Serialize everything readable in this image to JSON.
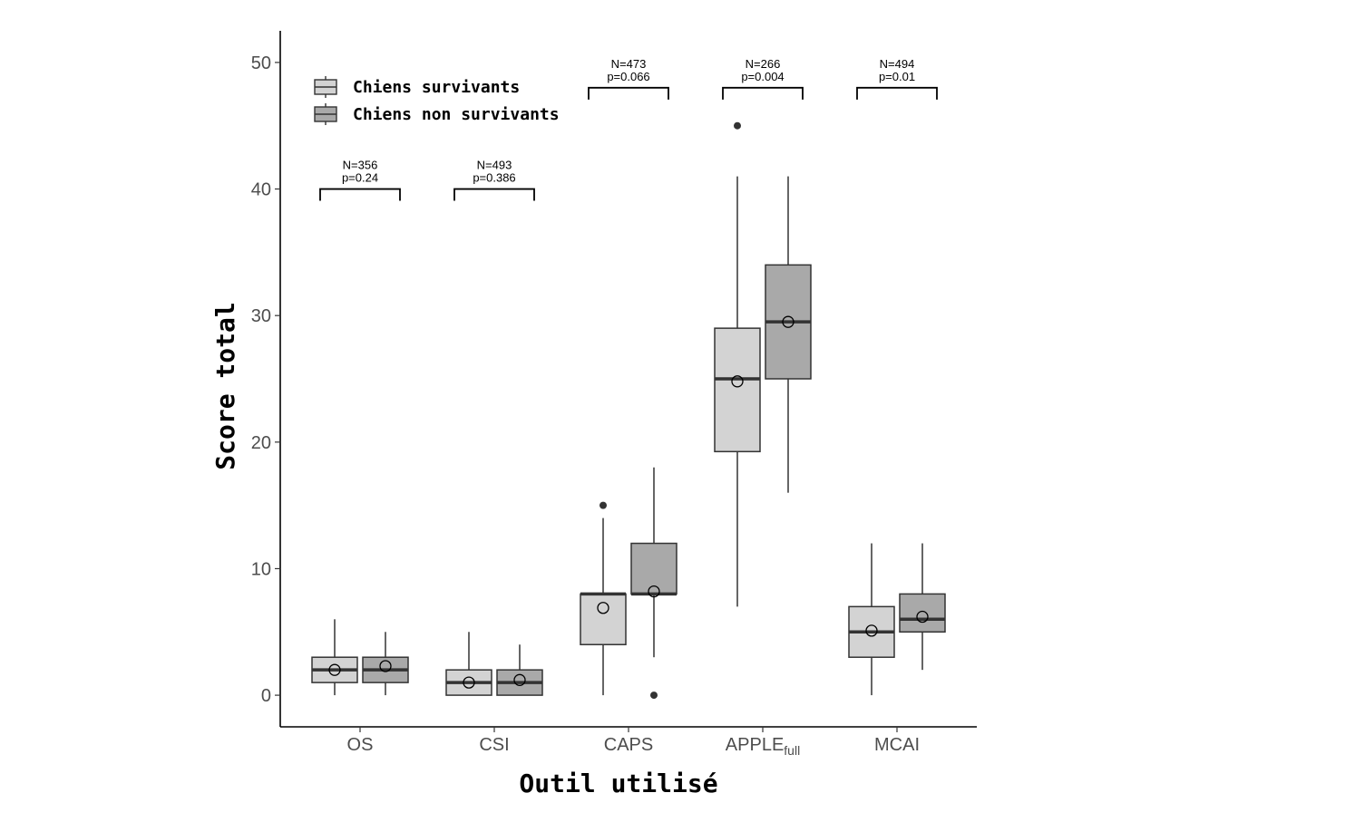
{
  "chart_data": {
    "type": "box",
    "xlabel": "Outil utilisé",
    "ylabel": "Score total",
    "ylim": [
      -2.5,
      52.5
    ],
    "yticks": [
      0,
      10,
      20,
      30,
      40,
      50
    ],
    "ytick_labels": [
      "0",
      "10",
      "20",
      "30",
      "40",
      "50"
    ],
    "categories": [
      {
        "label": "OS",
        "sub": ""
      },
      {
        "label": "CSI",
        "sub": ""
      },
      {
        "label": "CAPS",
        "sub": ""
      },
      {
        "label": "APPLE",
        "sub": "full"
      },
      {
        "label": "MCAI",
        "sub": ""
      }
    ],
    "legend": {
      "position": "top-left",
      "entries": [
        "Chiens survivants",
        "Chiens non survivants"
      ]
    },
    "colors": {
      "survivants": "#d3d3d3",
      "non_survivants": "#a9a9a9",
      "stroke": "#333333"
    },
    "series": [
      {
        "name": "Chiens survivants",
        "boxes": [
          {
            "min": 0,
            "q1": 1,
            "median": 2,
            "q3": 3,
            "max": 6,
            "mean": 2.0,
            "outliers": []
          },
          {
            "min": 0,
            "q1": 0,
            "median": 1,
            "q3": 2,
            "max": 5,
            "mean": 1.0,
            "outliers": []
          },
          {
            "min": 0,
            "q1": 4,
            "median": 8,
            "q3": 8,
            "max": 14,
            "mean": 6.9,
            "outliers": [
              15
            ]
          },
          {
            "min": 7,
            "q1": 19.25,
            "median": 25,
            "q3": 29,
            "max": 41,
            "mean": 24.8,
            "outliers": [
              45
            ]
          },
          {
            "min": 0,
            "q1": 3,
            "median": 5,
            "q3": 7,
            "max": 12,
            "mean": 5.1,
            "outliers": []
          }
        ]
      },
      {
        "name": "Chiens non survivants",
        "boxes": [
          {
            "min": 0,
            "q1": 1,
            "median": 2,
            "q3": 3,
            "max": 5,
            "mean": 2.3,
            "outliers": []
          },
          {
            "min": 0,
            "q1": 0,
            "median": 1,
            "q3": 2,
            "max": 4,
            "mean": 1.2,
            "outliers": []
          },
          {
            "min": 3,
            "q1": 8,
            "median": 8,
            "q3": 12,
            "max": 18,
            "mean": 8.2,
            "outliers": [
              0
            ]
          },
          {
            "min": 16,
            "q1": 25,
            "median": 29.5,
            "q3": 34,
            "max": 41,
            "mean": 29.5,
            "outliers": []
          },
          {
            "min": 2,
            "q1": 5,
            "median": 6,
            "q3": 8,
            "max": 12,
            "mean": 6.2,
            "outliers": []
          }
        ]
      }
    ],
    "annotations": [
      {
        "n": "N=356",
        "p": "p=0.24",
        "bracket_y": 40
      },
      {
        "n": "N=493",
        "p": "p=0.386",
        "bracket_y": 40
      },
      {
        "n": "N=473",
        "p": "p=0.066",
        "bracket_y": 48
      },
      {
        "n": "N=266",
        "p": "p=0.004",
        "bracket_y": 48
      },
      {
        "n": "N=494",
        "p": "p=0.01",
        "bracket_y": 48
      }
    ]
  }
}
